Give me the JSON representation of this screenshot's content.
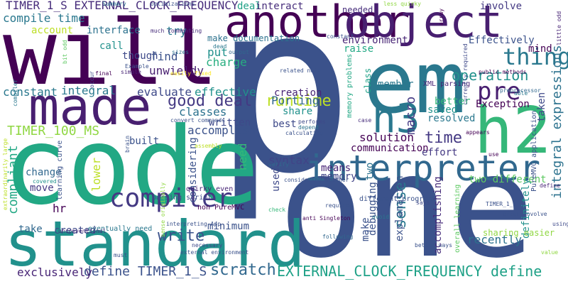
{
  "wordcloud": {
    "words": [
      {
        "text": "p",
        "color": "#3b528b"
      },
      {
        "text": "one",
        "color": "#3b528b"
      },
      {
        "text": "code",
        "color": "#22a884"
      },
      {
        "text": "will",
        "color": "#440154"
      },
      {
        "text": "em",
        "color": "#2a788e"
      },
      {
        "text": "standard",
        "color": "#21918c"
      },
      {
        "text": "made",
        "color": "#481f70"
      },
      {
        "text": "another",
        "color": "#440154"
      },
      {
        "text": "object",
        "color": "#481f70"
      },
      {
        "text": "h2",
        "color": "#35b779"
      },
      {
        "text": "h3",
        "color": "#2a788e"
      },
      {
        "text": "interpreter",
        "color": "#31688e"
      },
      {
        "text": "compiler",
        "color": "#443983"
      },
      {
        "text": "pre",
        "color": "#481f70"
      },
      {
        "text": "thing",
        "color": "#2a788e"
      },
      {
        "text": "EXTERNAL_CLOCK_FREQUENCY define",
        "color": "#1fa187"
      },
      {
        "text": "TIMER_1_S EXTERNAL_CLOCK_FREQUENCY",
        "color": "#472d7b"
      },
      {
        "text": "scratch",
        "color": "#31688e"
      },
      {
        "text": "good deal",
        "color": "#443983"
      },
      {
        "text": "TIMER_100_MS",
        "color": "#90d743"
      },
      {
        "text": "runtime",
        "color": "#bddf26"
      },
      {
        "text": "write",
        "color": "#3b528b"
      },
      {
        "text": "time",
        "color": "#443983"
      },
      {
        "text": "operation",
        "color": "#21918c"
      },
      {
        "text": "sense",
        "color": "#2a788e"
      },
      {
        "text": "integral expressions",
        "color": "#2c728e"
      },
      {
        "text": "macro",
        "color": "#443983"
      },
      {
        "text": "solution",
        "color": "#440154"
      },
      {
        "text": "define TIMER_1_S",
        "color": "#3b528b"
      },
      {
        "text": "exclusively",
        "color": "#482576"
      },
      {
        "text": "compliant",
        "color": "#22a884"
      },
      {
        "text": "accomplish",
        "color": "#3b528b"
      },
      {
        "text": "evaluate",
        "color": "#3e4989"
      },
      {
        "text": "effective",
        "color": "#21918c"
      },
      {
        "text": "classes",
        "color": "#2c728e"
      },
      {
        "text": "constant",
        "color": "#2a788e"
      },
      {
        "text": "integral",
        "color": "#2a788e"
      },
      {
        "text": "compile time",
        "color": "#2a788e"
      },
      {
        "text": "interface",
        "color": "#2c728e"
      },
      {
        "text": "try",
        "color": "#2a788e"
      },
      {
        "text": "call",
        "color": "#21918c"
      },
      {
        "text": "though",
        "color": "#3e4989"
      },
      {
        "text": "find",
        "color": "#3b528b"
      },
      {
        "text": "unwieldy",
        "color": "#481f70"
      },
      {
        "text": "put",
        "color": "#21918c"
      },
      {
        "text": "charge",
        "color": "#28ae80"
      },
      {
        "text": "Porting",
        "color": "#31688e"
      },
      {
        "text": "creation",
        "color": "#482576"
      },
      {
        "text": "share",
        "color": "#21918c"
      },
      {
        "text": "best",
        "color": "#3e4989"
      },
      {
        "text": "written",
        "color": "#3e4989"
      },
      {
        "text": "built",
        "color": "#3b528b"
      },
      {
        "text": "considering",
        "color": "#3b528b"
      },
      {
        "text": "change",
        "color": "#31688e"
      },
      {
        "text": "lower",
        "color": "#bddf26"
      },
      {
        "text": "move",
        "color": "#443983"
      },
      {
        "text": "hr",
        "color": "#440154"
      },
      {
        "text": "take",
        "color": "#31688e"
      },
      {
        "text": "created",
        "color": "#3e4989"
      },
      {
        "text": "minimum",
        "color": "#3b528b"
      },
      {
        "text": "syntax",
        "color": "#414487"
      },
      {
        "text": "means",
        "color": "#482576"
      },
      {
        "text": "memory",
        "color": "#414487"
      },
      {
        "text": "need",
        "color": "#35b779"
      },
      {
        "text": "used",
        "color": "#3e4989"
      },
      {
        "text": "two",
        "color": "#2c728e"
      },
      {
        "text": "debugging",
        "color": "#3b528b"
      },
      {
        "text": "make",
        "color": "#3b528b"
      },
      {
        "text": "explanation",
        "color": "#3b528b"
      },
      {
        "text": "accomplishing",
        "color": "#472d7b"
      },
      {
        "text": "recently",
        "color": "#2c728e"
      },
      {
        "text": "definitely",
        "color": "#21918c"
      },
      {
        "text": "two different",
        "color": "#5ec962"
      },
      {
        "text": "taken",
        "color": "#3e4989"
      },
      {
        "text": "effort",
        "color": "#443983"
      },
      {
        "text": "communication",
        "color": "#440154"
      },
      {
        "text": "resolved",
        "color": "#2a788e"
      },
      {
        "text": "saved",
        "color": "#21918c"
      },
      {
        "text": "better",
        "color": "#35b779"
      },
      {
        "text": "Exception",
        "color": "#440154"
      },
      {
        "text": "member",
        "color": "#2a788e"
      },
      {
        "text": "class",
        "color": "#1fa187"
      },
      {
        "text": "environment",
        "color": "#482576"
      },
      {
        "text": "raise",
        "color": "#22a884"
      },
      {
        "text": "needed",
        "color": "#472d7b"
      },
      {
        "text": "involve",
        "color": "#443983"
      },
      {
        "text": "deal",
        "color": "#1fa187"
      },
      {
        "text": "interact",
        "color": "#472d7b"
      },
      {
        "text": "Effectively",
        "color": "#3b528b"
      },
      {
        "text": "mind",
        "color": "#440154"
      },
      {
        "text": "account",
        "color": "#bddf26"
      },
      {
        "text": "make documentation",
        "color": "#2c728e"
      },
      {
        "text": "sharing easier",
        "color": "#90d743"
      },
      {
        "text": "eventually need",
        "color": "#2a788e"
      },
      {
        "text": "parsing script",
        "color": "#3e4989"
      },
      {
        "text": "non PureMVC",
        "color": "#440154"
      },
      {
        "text": "quirky even",
        "color": "#482576"
      },
      {
        "text": "different programs",
        "color": "#3b528b"
      },
      {
        "text": "anti Singleton",
        "color": "#440154"
      },
      {
        "text": "unconventional",
        "color": "#472d7b"
      },
      {
        "text": "related note",
        "color": "#3b528b"
      },
      {
        "text": "XML parsing",
        "color": "#482576"
      },
      {
        "text": "PureMVC application",
        "color": "#3b528b"
      },
      {
        "text": "learning curve",
        "color": "#3b528b"
      },
      {
        "text": "memory problems",
        "color": "#22a884"
      },
      {
        "text": "overall learning",
        "color": "#5ec962"
      },
      {
        "text": "currently required",
        "color": "#3e4989"
      },
      {
        "text": "public methods",
        "color": "#440154"
      },
      {
        "text": "Summary",
        "color": "#2c728e"
      },
      {
        "text": "optimizations",
        "color": "#3b528b"
      },
      {
        "text": "much commenting",
        "color": "#472d7b"
      },
      {
        "text": "sizes",
        "color": "#2c728e"
      },
      {
        "text": "output",
        "color": "#31688e"
      },
      {
        "text": "dead",
        "color": "#2a788e"
      },
      {
        "text": "Example",
        "color": "#3b528b"
      },
      {
        "text": "simple",
        "color": "#482576"
      },
      {
        "text": "final",
        "color": "#440154"
      },
      {
        "text": "easily fixed",
        "color": "#fde725"
      },
      {
        "text": "convert commands",
        "color": "#3b528b"
      },
      {
        "text": "performs",
        "color": "#3e4989"
      },
      {
        "text": "depend",
        "color": "#2c728e"
      },
      {
        "text": "calculating",
        "color": "#3b528b"
      },
      {
        "text": "case",
        "color": "#472d7b"
      },
      {
        "text": "appears",
        "color": "#440154"
      },
      {
        "text": "preprocessor",
        "color": "#31688e"
      },
      {
        "text": "able",
        "color": "#2a788e"
      },
      {
        "text": "constant",
        "color": "#3b528b"
      },
      {
        "text": "less quirky",
        "color": "#90d743"
      },
      {
        "text": "array",
        "color": "#440154"
      },
      {
        "text": "little odd",
        "color": "#482576"
      },
      {
        "text": "bit odd",
        "color": "#5ec962"
      },
      {
        "text": "occur",
        "color": "#3e4989"
      },
      {
        "text": "compiler",
        "color": "#2a788e"
      },
      {
        "text": "extraordinarily large",
        "color": "#bddf26"
      },
      {
        "text": "covered",
        "color": "#21918c"
      },
      {
        "text": "sense originally",
        "color": "#90d743"
      },
      {
        "text": "brain",
        "color": "#3b528b"
      },
      {
        "text": "assembly",
        "color": "#bddf26"
      },
      {
        "text": "verify",
        "color": "#31688e"
      },
      {
        "text": "considering whether",
        "color": "#3b528b"
      },
      {
        "text": "interpreting App",
        "color": "#3b528b"
      },
      {
        "text": "external environment",
        "color": "#3b528b"
      },
      {
        "text": "required",
        "color": "#3b528b"
      },
      {
        "text": "check",
        "color": "#35b779"
      },
      {
        "text": "following",
        "color": "#31688e"
      },
      {
        "text": "necessary",
        "color": "#3e4989"
      },
      {
        "text": "avoid",
        "color": "#2a788e"
      },
      {
        "text": "better ways",
        "color": "#3b528b"
      },
      {
        "text": "says",
        "color": "#3e4989"
      },
      {
        "text": "often involve",
        "color": "#3b528b"
      },
      {
        "text": "value",
        "color": "#90d743"
      },
      {
        "text": "using",
        "color": "#3e4989"
      },
      {
        "text": "TIMER_1_S",
        "color": "#3b528b"
      },
      {
        "text": "define",
        "color": "#482576"
      },
      {
        "text": "use",
        "color": "#440154"
      },
      {
        "text": "must",
        "color": "#3b528b"
      }
    ]
  }
}
